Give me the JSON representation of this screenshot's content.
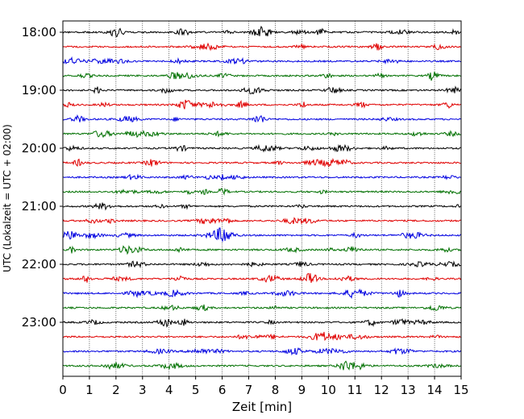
{
  "chart_data": {
    "type": "line",
    "title": "",
    "xlabel": "Zeit  [min]",
    "ylabel": "UTC (Lokalzeit = UTC + 02:00)",
    "xlim": [
      0,
      15
    ],
    "x_ticks": [
      "0",
      "1",
      "2",
      "3",
      "4",
      "5",
      "6",
      "7",
      "8",
      "9",
      "10",
      "11",
      "12",
      "13",
      "14",
      "15"
    ],
    "y_tick_labels": [
      "18:00",
      "19:00",
      "20:00",
      "21:00",
      "22:00",
      "23:00"
    ],
    "grid": "vertical dotted lines at each minute",
    "trace_interval_minutes": 15,
    "start_time": "18:00",
    "trace_count": 24,
    "trace_colors": [
      "#000000",
      "#e00000",
      "#0000e0",
      "#007000"
    ]
  }
}
